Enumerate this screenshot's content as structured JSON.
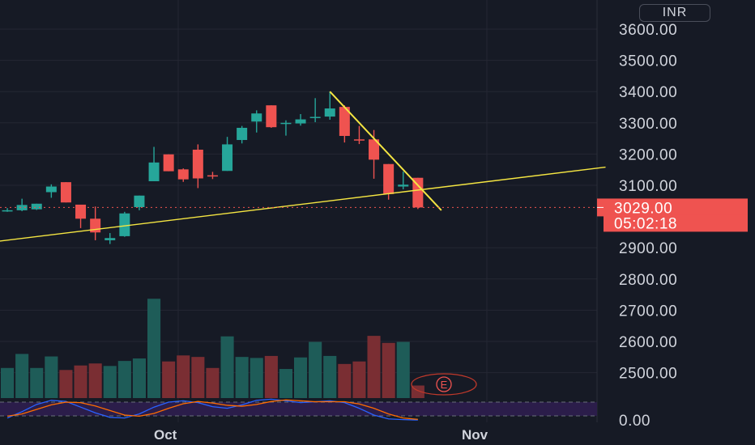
{
  "currency": "INR",
  "price_axis": {
    "ticks": [
      {
        "value": 3600,
        "label": "3600.00"
      },
      {
        "value": 3500,
        "label": "3500.00"
      },
      {
        "value": 3400,
        "label": "3400.00"
      },
      {
        "value": 3300,
        "label": "3300.00"
      },
      {
        "value": 3200,
        "label": "3200.00"
      },
      {
        "value": 3100,
        "label": "3100.00"
      },
      {
        "value": 2900,
        "label": "2900.00"
      },
      {
        "value": 2800,
        "label": "2800.00"
      },
      {
        "value": 2700,
        "label": "2700.00"
      },
      {
        "value": 2600,
        "label": "2600.00"
      },
      {
        "value": 2500,
        "label": "2500.00"
      }
    ],
    "indicator_tick": "0.00"
  },
  "last_price": {
    "value": 3029,
    "label": "3029.00",
    "countdown": "05:02:18"
  },
  "time_axis": [
    "Oct",
    "Nov"
  ],
  "event_marker": "E",
  "colors": {
    "up": "#26a69a",
    "down": "#ef5350",
    "trendline": "#f5e642",
    "background": "#161a25",
    "grid": "#242733"
  },
  "chart_data": {
    "type": "candlestick",
    "candles": [
      {
        "o": 3017,
        "h": 3027,
        "l": 3015,
        "c": 3020
      },
      {
        "o": 3020,
        "h": 3057,
        "l": 3017,
        "c": 3037
      },
      {
        "o": 3023,
        "h": 3041,
        "l": 3021,
        "c": 3041
      },
      {
        "o": 3078,
        "h": 3103,
        "l": 3060,
        "c": 3096
      },
      {
        "o": 3110,
        "h": 3110,
        "l": 3045,
        "c": 3045
      },
      {
        "o": 3038,
        "h": 3032,
        "l": 2963,
        "c": 2993
      },
      {
        "o": 2993,
        "h": 3032,
        "l": 2924,
        "c": 2949
      },
      {
        "o": 2924,
        "h": 2947,
        "l": 2912,
        "c": 2931
      },
      {
        "o": 2937,
        "h": 3015,
        "l": 2935,
        "c": 3010
      },
      {
        "o": 3030,
        "h": 3067,
        "l": 3020,
        "c": 3067
      },
      {
        "o": 3113,
        "h": 3223,
        "l": 3113,
        "c": 3173
      },
      {
        "o": 3199,
        "h": 3199,
        "l": 3145,
        "c": 3145
      },
      {
        "o": 3151,
        "h": 3154,
        "l": 3111,
        "c": 3119
      },
      {
        "o": 3214,
        "h": 3231,
        "l": 3091,
        "c": 3122
      },
      {
        "o": 3132,
        "h": 3143,
        "l": 3120,
        "c": 3131
      },
      {
        "o": 3146,
        "h": 3255,
        "l": 3146,
        "c": 3231
      },
      {
        "o": 3245,
        "h": 3290,
        "l": 3234,
        "c": 3284
      },
      {
        "o": 3304,
        "h": 3340,
        "l": 3269,
        "c": 3330
      },
      {
        "o": 3356,
        "h": 3356,
        "l": 3284,
        "c": 3286
      },
      {
        "o": 3297,
        "h": 3308,
        "l": 3259,
        "c": 3300
      },
      {
        "o": 3298,
        "h": 3328,
        "l": 3291,
        "c": 3311
      },
      {
        "o": 3316,
        "h": 3379,
        "l": 3302,
        "c": 3319
      },
      {
        "o": 3320,
        "h": 3400,
        "l": 3310,
        "c": 3346
      },
      {
        "o": 3351,
        "h": 3356,
        "l": 3237,
        "c": 3258
      },
      {
        "o": 3247,
        "h": 3290,
        "l": 3232,
        "c": 3244
      },
      {
        "o": 3247,
        "h": 3277,
        "l": 3121,
        "c": 3182
      },
      {
        "o": 3168,
        "h": 3168,
        "l": 3054,
        "c": 3072
      },
      {
        "o": 3096,
        "h": 3144,
        "l": 3087,
        "c": 3102
      },
      {
        "o": 3124,
        "h": 3124,
        "l": 3024,
        "c": 3029
      }
    ],
    "volume": [
      {
        "v": 60,
        "dir": "up"
      },
      {
        "v": 88,
        "dir": "up"
      },
      {
        "v": 60,
        "dir": "up"
      },
      {
        "v": 83,
        "dir": "up"
      },
      {
        "v": 56,
        "dir": "down"
      },
      {
        "v": 65,
        "dir": "down"
      },
      {
        "v": 69,
        "dir": "down"
      },
      {
        "v": 64,
        "dir": "up"
      },
      {
        "v": 74,
        "dir": "up"
      },
      {
        "v": 79,
        "dir": "up"
      },
      {
        "v": 198,
        "dir": "up"
      },
      {
        "v": 73,
        "dir": "down"
      },
      {
        "v": 85,
        "dir": "down"
      },
      {
        "v": 82,
        "dir": "down"
      },
      {
        "v": 60,
        "dir": "down"
      },
      {
        "v": 123,
        "dir": "up"
      },
      {
        "v": 82,
        "dir": "up"
      },
      {
        "v": 80,
        "dir": "up"
      },
      {
        "v": 84,
        "dir": "down"
      },
      {
        "v": 58,
        "dir": "up"
      },
      {
        "v": 81,
        "dir": "up"
      },
      {
        "v": 112,
        "dir": "up"
      },
      {
        "v": 84,
        "dir": "up"
      },
      {
        "v": 68,
        "dir": "down"
      },
      {
        "v": 73,
        "dir": "down"
      },
      {
        "v": 124,
        "dir": "down"
      },
      {
        "v": 110,
        "dir": "down"
      },
      {
        "v": 112,
        "dir": "up"
      },
      {
        "v": 25,
        "dir": "down"
      }
    ],
    "trendlines": [
      {
        "name": "support",
        "from": {
          "bar": -7.2,
          "price": 2883
        },
        "to": {
          "bar": 40.8,
          "price": 3158
        }
      },
      {
        "name": "resistance",
        "from": {
          "bar": 22.0,
          "price": 3400
        },
        "to": {
          "bar": 29.6,
          "price": 3020
        }
      }
    ],
    "y_range": [
      2465,
      3650
    ],
    "indicator": {
      "levels": [
        "upper band",
        "lower band"
      ],
      "k": [
        12,
        40,
        72,
        90,
        85,
        60,
        35,
        15,
        12,
        30,
        60,
        82,
        88,
        80,
        62,
        55,
        70,
        90,
        95,
        88,
        80,
        84,
        88,
        80,
        55,
        25,
        8,
        5,
        3
      ],
      "d": [
        20,
        30,
        50,
        70,
        82,
        80,
        65,
        45,
        25,
        20,
        32,
        55,
        75,
        85,
        78,
        68,
        64,
        72,
        85,
        92,
        88,
        84,
        84,
        84,
        74,
        55,
        30,
        12,
        6
      ]
    }
  }
}
